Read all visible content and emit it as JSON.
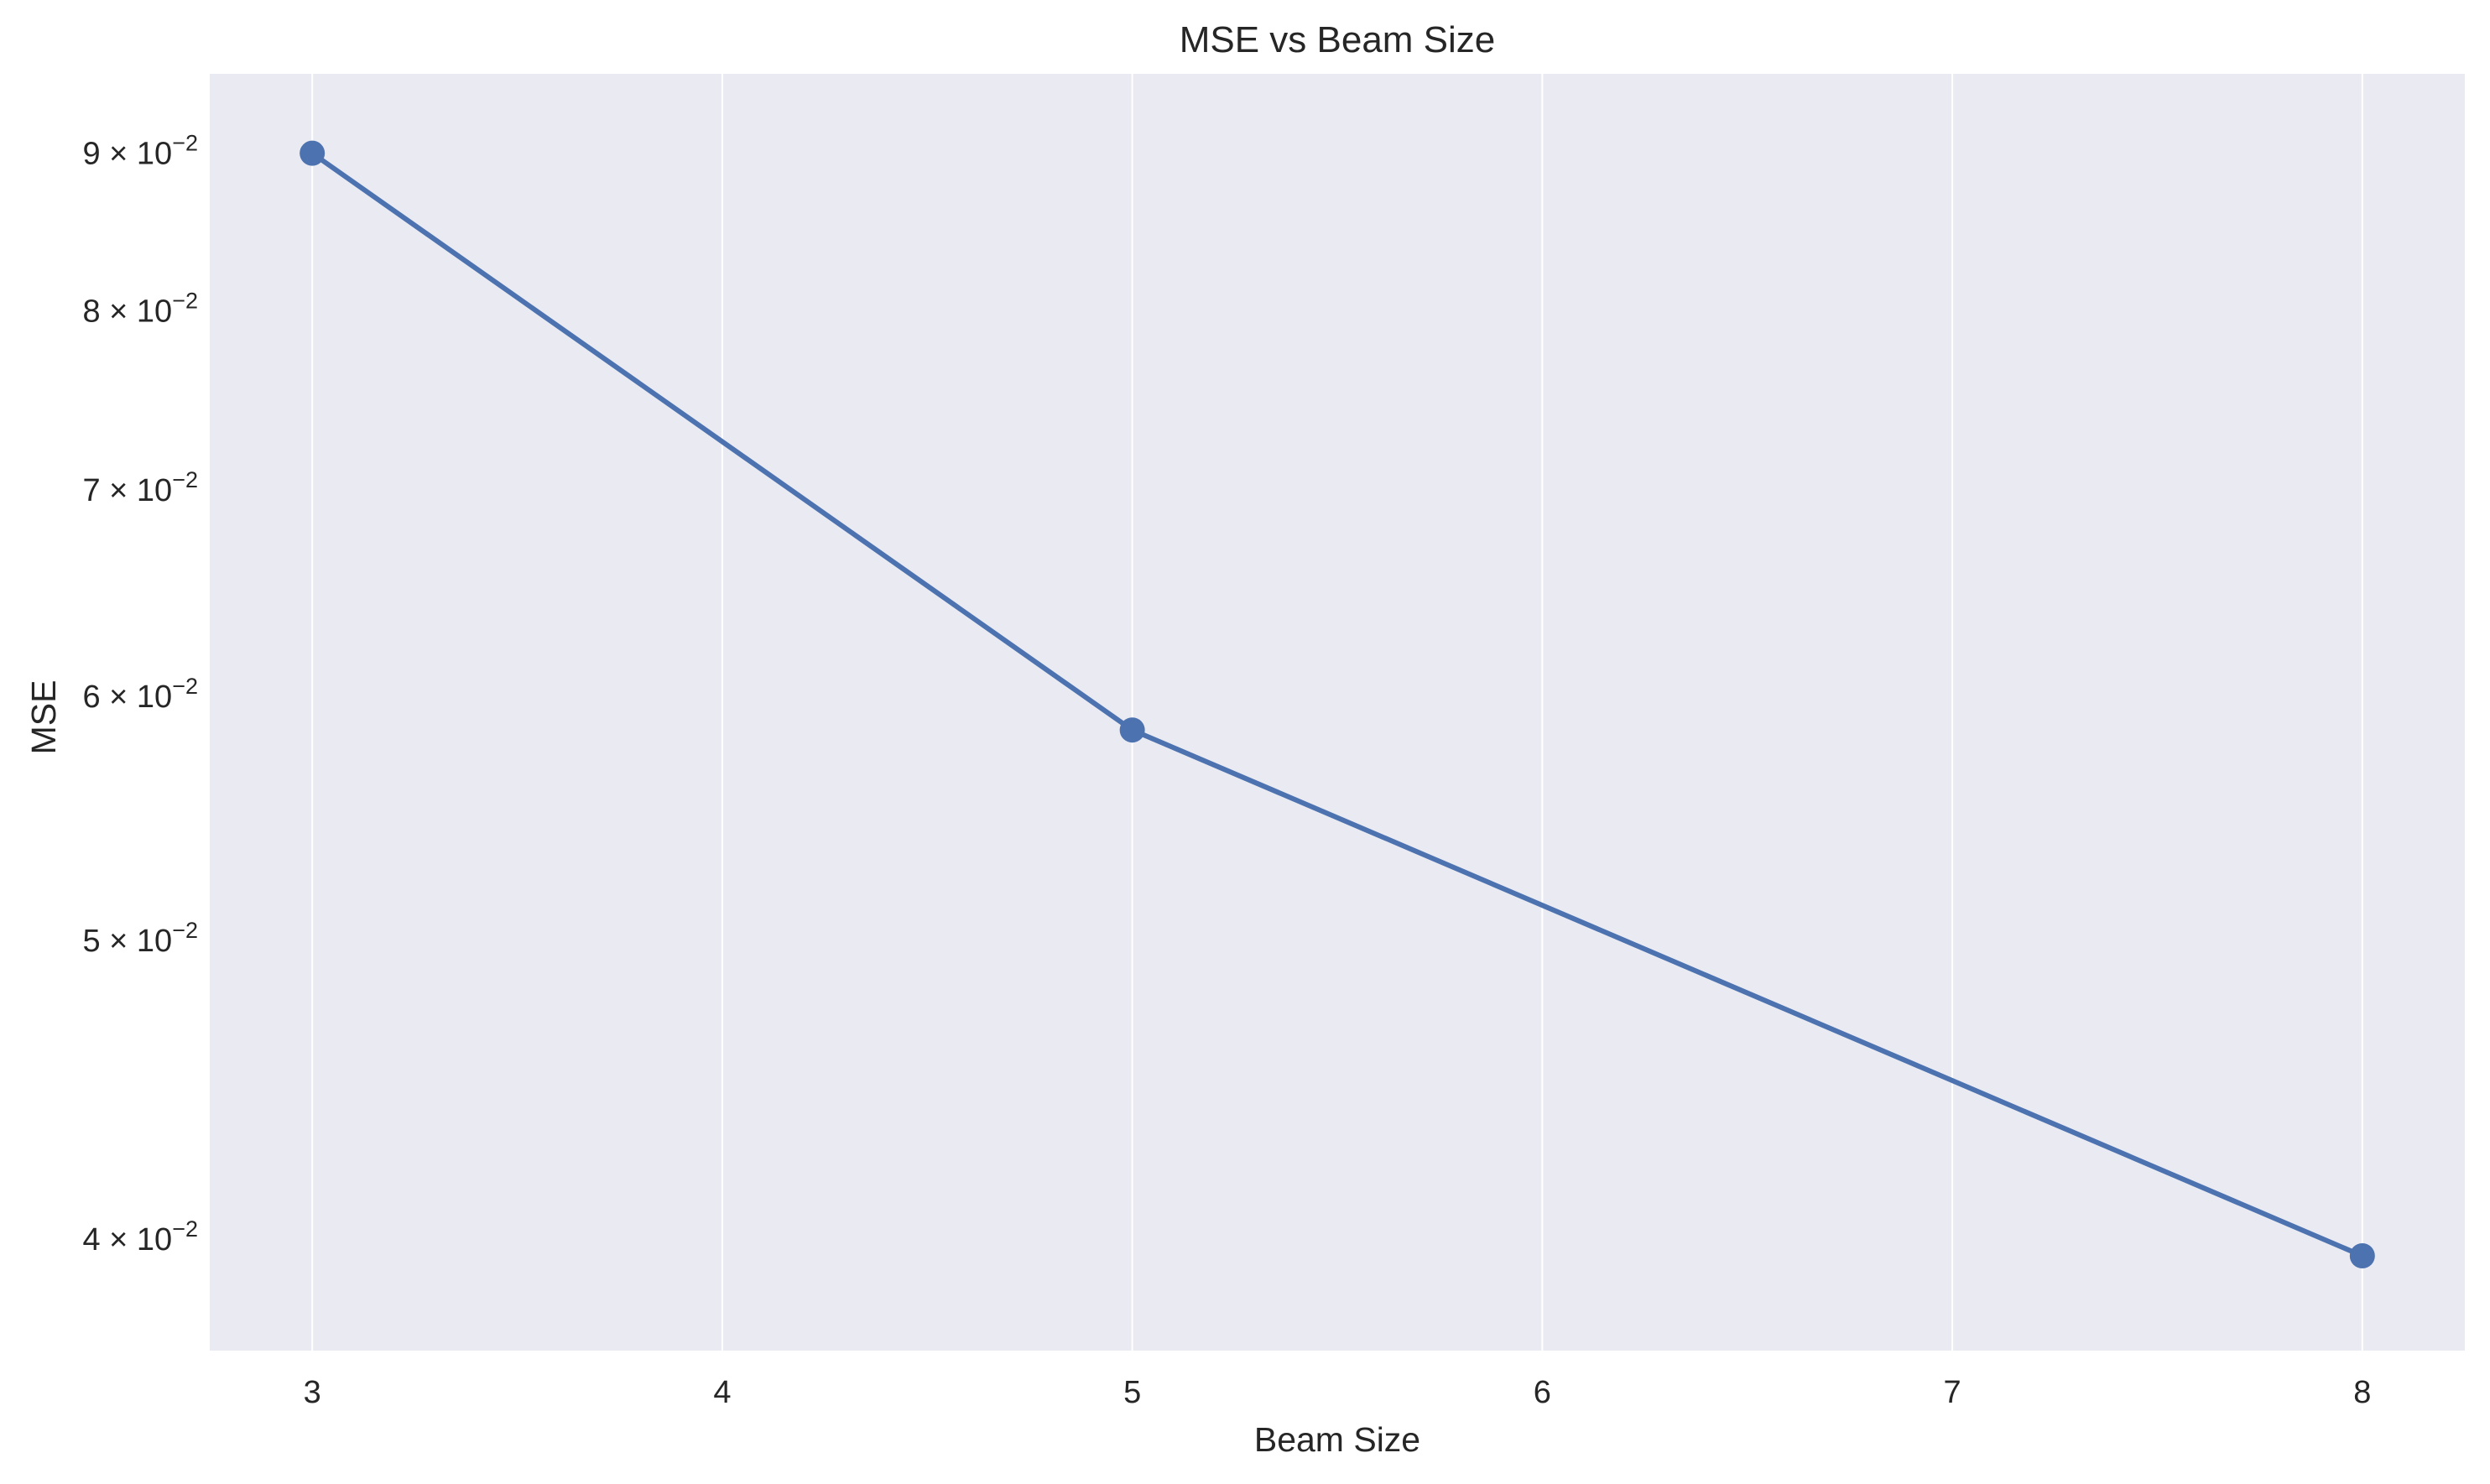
{
  "chart_data": {
    "type": "line",
    "title": "MSE vs Beam Size",
    "xlabel": "Beam Size",
    "ylabel": "MSE",
    "x": [
      3,
      5,
      8
    ],
    "series": [
      {
        "values": [
          0.09,
          0.0585,
          0.0395
        ]
      }
    ],
    "xlim": [
      2.75,
      8.25
    ],
    "xticks": [
      3,
      4,
      5,
      6,
      7,
      8
    ],
    "yscale": "log",
    "ylim": [
      0.0368,
      0.0955
    ],
    "yticks": [
      {
        "value": 0.04,
        "mantissa": "4",
        "times": "×",
        "base": "10",
        "exponent": "−2"
      },
      {
        "value": 0.05,
        "mantissa": "5",
        "times": "×",
        "base": "10",
        "exponent": "−2"
      },
      {
        "value": 0.06,
        "mantissa": "6",
        "times": "×",
        "base": "10",
        "exponent": "−2"
      },
      {
        "value": 0.07,
        "mantissa": "7",
        "times": "×",
        "base": "10",
        "exponent": "−2"
      },
      {
        "value": 0.08,
        "mantissa": "8",
        "times": "×",
        "base": "10",
        "exponent": "−2"
      },
      {
        "value": 0.09,
        "mantissa": "9",
        "times": "×",
        "base": "10",
        "exponent": "−2"
      }
    ],
    "grid": "x-only",
    "colors": {
      "plot_background": "#eaeaf2",
      "grid": "#ffffff",
      "line": "#4c72b0",
      "text": "#262626"
    }
  }
}
